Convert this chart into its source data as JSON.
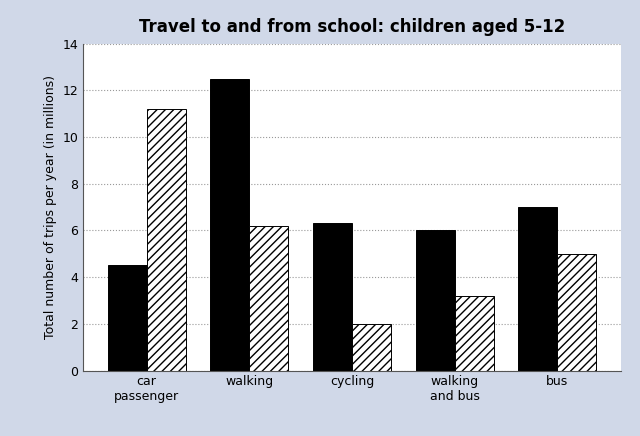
{
  "title": "Travel to and from school: children aged 5-12",
  "ylabel": "Total number of trips per year (in millions)",
  "categories": [
    "car\npassenger",
    "walking",
    "cycling",
    "walking\nand bus",
    "bus"
  ],
  "values_1990": [
    4.5,
    12.5,
    6.3,
    6.0,
    7.0
  ],
  "values_2010": [
    11.2,
    6.2,
    2.0,
    3.2,
    5.0
  ],
  "ylim": [
    0,
    14
  ],
  "yticks": [
    0,
    2,
    4,
    6,
    8,
    10,
    12,
    14
  ],
  "color_1990": "#000000",
  "hatch_2010": "////",
  "bar_width": 0.38,
  "border_color": "#d0d8e8",
  "plot_background": "#ffffff",
  "title_fontsize": 12,
  "label_fontsize": 9,
  "tick_fontsize": 9
}
